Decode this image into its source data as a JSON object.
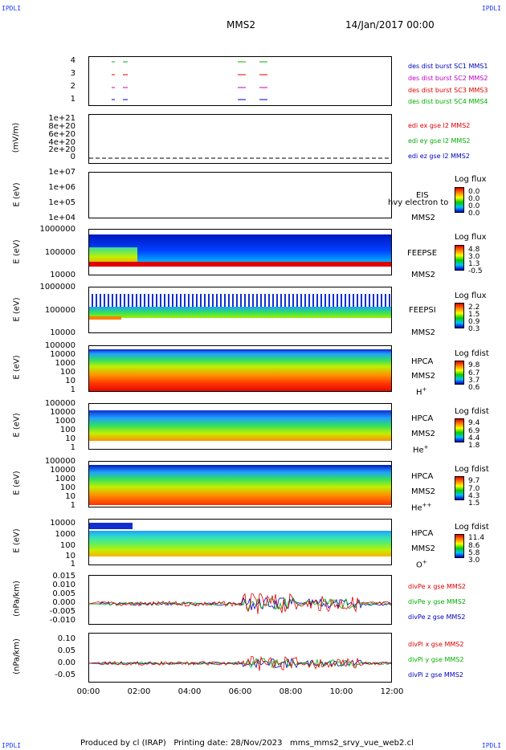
{
  "header": {
    "left_tag": "IPDLI",
    "right_tag": "IPDLI",
    "center": "MMS2",
    "date": "14/Jan/2017 00:00"
  },
  "footer": {
    "left_tag": "IPDLI",
    "right_tag": "IPDLI",
    "text": "Produced by cl (IRAP)   Printing date: 28/Nov/2023   mms_mms2_srvy_vue_web2.cl"
  },
  "x_ticks": [
    "00:00",
    "02:00",
    "04:00",
    "06:00",
    "08:00",
    "10:00",
    "12:00"
  ],
  "chart_data": [
    {
      "type": "scatter",
      "name": "burst",
      "yticks": [
        "4",
        "3",
        "2",
        "1"
      ],
      "legend": [
        "des dist burst SC1 MMS1",
        "des dist burst SC2 MMS2",
        "des dist burst SC3 MMS3",
        "des dist burst SC4 MMS4"
      ],
      "colors": [
        "#0000c0",
        "#c000c0",
        "#e00000",
        "#00b000"
      ]
    },
    {
      "type": "line",
      "ylabel": "(mV/m)",
      "yticks": [
        "1e+21",
        "8e+20",
        "6e+20",
        "4e+20",
        "2e+20",
        "0"
      ],
      "legend": [
        "edi ex gse l2 MMS2",
        "edi ey gse l2 MMS2",
        "edi ez gse l2 MMS2"
      ],
      "colors": [
        "#e00000",
        "#00b000",
        "#0000c0"
      ]
    },
    {
      "type": "heatmap",
      "ylabel": "E (eV)",
      "yticks": [
        "1e+07",
        "1e+06",
        "1e+05",
        "1e+04"
      ],
      "instrument": "EIS",
      "sc": "MMS2",
      "overlay": "hvy electron to",
      "cb_title": "Log flux",
      "cb_values": [
        "0.0",
        "0.0",
        "0.0",
        "0.0"
      ]
    },
    {
      "type": "heatmap",
      "ylabel": "E (eV)",
      "yticks": [
        "1000000",
        "100000",
        "10000"
      ],
      "instrument": "FEEPSE",
      "sc": "MMS2",
      "cb_title": "Log flux",
      "cb_values": [
        "4.8",
        "3.0",
        "1.3",
        "-0.5"
      ]
    },
    {
      "type": "heatmap",
      "ylabel": "E (eV)",
      "yticks": [
        "1000000",
        "100000",
        "10000"
      ],
      "instrument": "FEEPSI",
      "sc": "MMS2",
      "cb_title": "Log flux",
      "cb_values": [
        "2.2",
        "1.5",
        "0.9",
        "0.3"
      ]
    },
    {
      "type": "heatmap",
      "ylabel": "E (eV)",
      "yticks": [
        "100000",
        "10000",
        "1000",
        "100",
        "10",
        "1"
      ],
      "instrument": "HPCA",
      "sc": "MMS2",
      "species": "H",
      "charge": "+",
      "cb_title": "Log fdist",
      "cb_values": [
        "9.8",
        "6.7",
        "3.7",
        "0.6"
      ]
    },
    {
      "type": "heatmap",
      "ylabel": "E (eV)",
      "yticks": [
        "100000",
        "10000",
        "1000",
        "100",
        "10",
        "1"
      ],
      "instrument": "HPCA",
      "sc": "MMS2",
      "species": "He",
      "charge": "+",
      "cb_title": "Log fdist",
      "cb_values": [
        "9.4",
        "6.9",
        "4.4",
        "1.8"
      ]
    },
    {
      "type": "heatmap",
      "ylabel": "E (eV)",
      "yticks": [
        "100000",
        "10000",
        "1000",
        "100",
        "10",
        "1"
      ],
      "instrument": "HPCA",
      "sc": "MMS2",
      "species": "He",
      "charge": "++",
      "cb_title": "Log fdist",
      "cb_values": [
        "9.7",
        "7.0",
        "4.3",
        "1.5"
      ]
    },
    {
      "type": "heatmap",
      "ylabel": "E (eV)",
      "yticks": [
        "10000",
        "1000",
        "100",
        "10",
        "1"
      ],
      "instrument": "HPCA",
      "sc": "MMS2",
      "species": "O",
      "charge": "+",
      "cb_title": "Log fdist",
      "cb_values": [
        "11.4",
        "8.6",
        "5.8",
        "3.0"
      ]
    },
    {
      "type": "line",
      "ylabel": "(nPa/km)",
      "yticks": [
        "0.015",
        "0.010",
        "0.005",
        "0.000",
        "-0.005",
        "-0.010"
      ],
      "legend": [
        "divPe x gse MMS2",
        "divPe y gse MMS2",
        "divPe z gse MMS2"
      ],
      "colors": [
        "#e00000",
        "#00b000",
        "#0000c0"
      ]
    },
    {
      "type": "line",
      "ylabel": "(nPa/km)",
      "yticks": [
        "0.10",
        "0.05",
        "0.00",
        "-0.05"
      ],
      "legend": [
        "divPi x gse MMS2",
        "divPi y gse MMS2",
        "divPi z gse MMS2"
      ],
      "colors": [
        "#e00000",
        "#00b000",
        "#0000c0"
      ]
    }
  ]
}
